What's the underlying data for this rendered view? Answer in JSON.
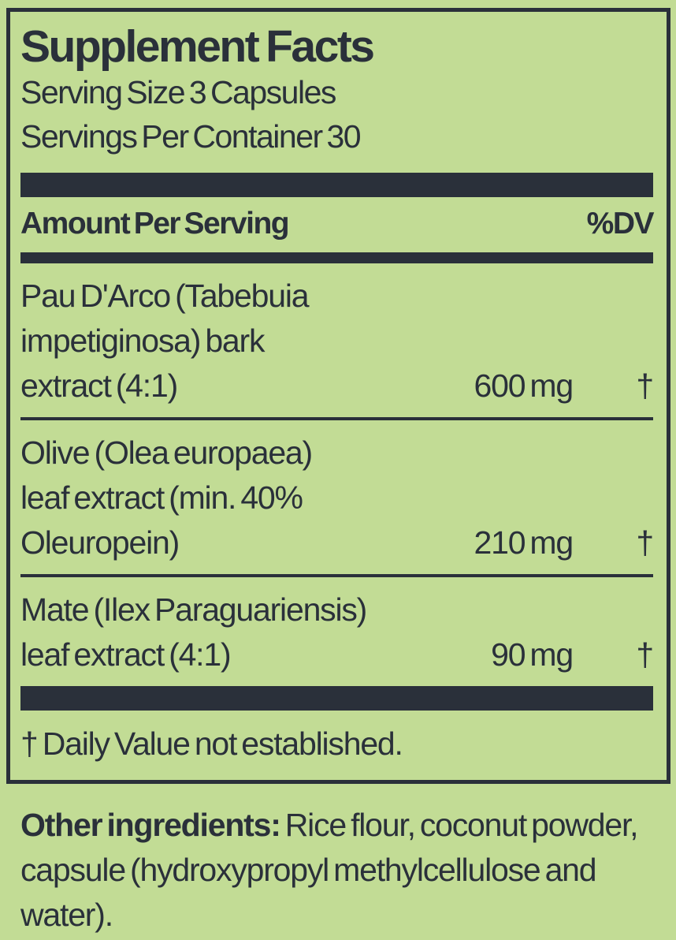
{
  "colors": {
    "background": "#c2dc95",
    "ink": "#2a303a"
  },
  "panel": {
    "title": "Supplement Facts",
    "serving_size": "Serving Size 3 Capsules",
    "servings_per_container": "Servings Per Container 30",
    "header": {
      "amount_label": "Amount Per Serving",
      "dv_label": "%DV"
    },
    "rows": [
      {
        "name_lines": [
          "Pau D'Arco (Tabebuia",
          "impetiginosa) bark",
          "extract (4:1)"
        ],
        "amount": "600 mg",
        "dv": "†"
      },
      {
        "name_lines": [
          "Olive (Olea europaea)",
          "leaf extract (min. 40%",
          "Oleuropein)"
        ],
        "amount": "210 mg",
        "dv": "†"
      },
      {
        "name_lines": [
          "Mate (Ilex Paraguariensis)",
          "leaf extract (4:1)"
        ],
        "amount": "90 mg",
        "dv": "†"
      }
    ],
    "footnote": "† Daily Value not established."
  },
  "other_ingredients": {
    "label": "Other ingredients:",
    "text": "Rice flour, coconut powder, capsule (hydroxypropyl methylcellulose and water)."
  }
}
